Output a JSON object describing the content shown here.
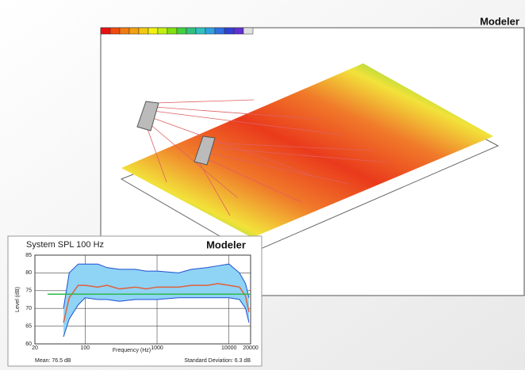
{
  "main_view": {
    "logo": "Modeler"
  },
  "chart_data": {
    "type": "line",
    "title": "System SPL 100 Hz",
    "logo": "Modeler",
    "x_label": "Frequency (Hz)",
    "y_label": "Level (dB)",
    "xscale": "log",
    "xlim": [
      20,
      20000
    ],
    "xticks": [
      20,
      100,
      1000,
      10000,
      20000
    ],
    "ylim": [
      60,
      85
    ],
    "yticks": [
      60,
      65,
      70,
      75,
      80,
      85
    ],
    "grid": true,
    "footer_left": "Mean: 76.5 dB",
    "footer_right": "Standard Deviation: 6.3 dB",
    "series": [
      {
        "color": "#1f4fd0",
        "fill": "#8fd3f5",
        "x": [
          50,
          60,
          80,
          100,
          150,
          200,
          300,
          500,
          700,
          1000,
          2000,
          3000,
          5000,
          7000,
          10000,
          14000,
          17000,
          19000
        ],
        "values": [
          70,
          80,
          82.5,
          82.5,
          82.5,
          81.5,
          81,
          81,
          80.5,
          80.5,
          80,
          81,
          81.5,
          82,
          82.5,
          80,
          77,
          73
        ]
      },
      {
        "color": "#1f4fd0",
        "fill": "#8fd3f5",
        "x": [
          50,
          60,
          80,
          100,
          150,
          200,
          300,
          500,
          700,
          1000,
          2000,
          3000,
          5000,
          7000,
          10000,
          14000,
          17000,
          19000
        ],
        "values": [
          62,
          67,
          71,
          73,
          72.5,
          72.5,
          72,
          72.5,
          72.5,
          72.5,
          73,
          73,
          73,
          73,
          73,
          72.5,
          70,
          66
        ]
      },
      {
        "color": "#e0603a",
        "x": [
          50,
          60,
          80,
          100,
          150,
          200,
          300,
          500,
          700,
          1000,
          2000,
          3000,
          5000,
          7000,
          10000,
          14000,
          17000,
          19000
        ],
        "values": [
          66,
          73,
          76.5,
          76.5,
          76,
          76.5,
          75.5,
          76,
          75.5,
          76,
          76,
          76.5,
          76.5,
          77,
          76.5,
          76,
          73.5,
          69
        ]
      },
      {
        "color": "#2fb84a",
        "x": [
          30,
          20000
        ],
        "values": [
          74,
          74
        ]
      }
    ]
  }
}
